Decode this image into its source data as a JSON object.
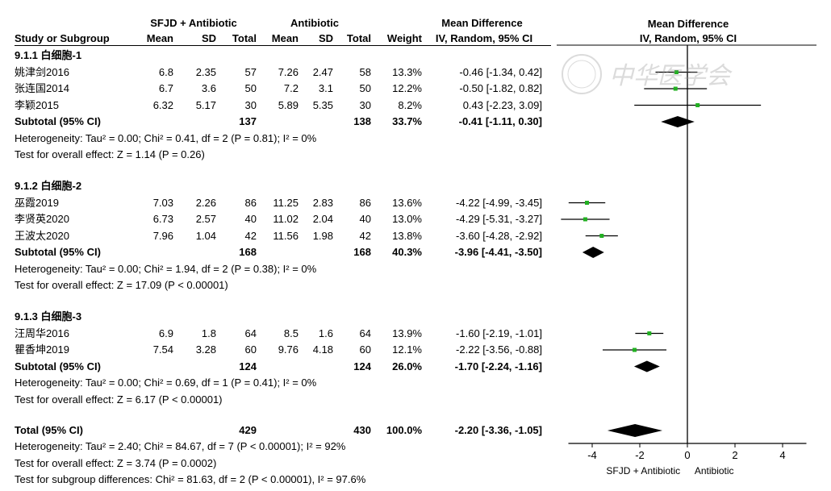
{
  "header": {
    "group1": "SFJD + Antibiotic",
    "group2": "Antibiotic",
    "md_title": "Mean Difference",
    "md_sub": "IV, Random, 95% CI",
    "plot_title": "Mean Difference",
    "plot_sub": "IV, Random, 95% CI",
    "cols": {
      "study": "Study or Subgroup",
      "mean1": "Mean",
      "sd1": "SD",
      "total1": "Total",
      "mean2": "Mean",
      "sd2": "SD",
      "total2": "Total",
      "weight": "Weight"
    }
  },
  "subgroups": [
    {
      "title": "9.1.1 白细胞-1",
      "studies": [
        {
          "name": "姚津剑2016",
          "mean1": "6.8",
          "sd1": "2.35",
          "total1": "57",
          "mean2": "7.26",
          "sd2": "2.47",
          "total2": "58",
          "weight": "13.3%",
          "ci": "-0.46 [-1.34, 0.42]",
          "md": -0.46,
          "lo": -1.34,
          "hi": 0.42
        },
        {
          "name": "张连国2014",
          "mean1": "6.7",
          "sd1": "3.6",
          "total1": "50",
          "mean2": "7.2",
          "sd2": "3.1",
          "total2": "50",
          "weight": "12.2%",
          "ci": "-0.50 [-1.82, 0.82]",
          "md": -0.5,
          "lo": -1.82,
          "hi": 0.82
        },
        {
          "name": "李颖2015",
          "mean1": "6.32",
          "sd1": "5.17",
          "total1": "30",
          "mean2": "5.89",
          "sd2": "5.35",
          "total2": "30",
          "weight": "8.2%",
          "ci": "0.43 [-2.23, 3.09]",
          "md": 0.43,
          "lo": -2.23,
          "hi": 3.09
        }
      ],
      "subtotal": {
        "label": "Subtotal (95% CI)",
        "total1": "137",
        "total2": "138",
        "weight": "33.7%",
        "ci": "-0.41 [-1.11, 0.30]",
        "md": -0.41,
        "lo": -1.11,
        "hi": 0.3
      },
      "heterogeneity": "Heterogeneity: Tau² = 0.00; Chi² = 0.41, df = 2 (P = 0.81); I² = 0%",
      "overall": "Test for overall effect: Z = 1.14 (P = 0.26)"
    },
    {
      "title": "9.1.2 白细胞-2",
      "studies": [
        {
          "name": "巫霞2019",
          "mean1": "7.03",
          "sd1": "2.26",
          "total1": "86",
          "mean2": "11.25",
          "sd2": "2.83",
          "total2": "86",
          "weight": "13.6%",
          "ci": "-4.22 [-4.99, -3.45]",
          "md": -4.22,
          "lo": -4.99,
          "hi": -3.45
        },
        {
          "name": "李贤英2020",
          "mean1": "6.73",
          "sd1": "2.57",
          "total1": "40",
          "mean2": "11.02",
          "sd2": "2.04",
          "total2": "40",
          "weight": "13.0%",
          "ci": "-4.29 [-5.31, -3.27]",
          "md": -4.29,
          "lo": -5.31,
          "hi": -3.27
        },
        {
          "name": "王波太2020",
          "mean1": "7.96",
          "sd1": "1.04",
          "total1": "42",
          "mean2": "11.56",
          "sd2": "1.98",
          "total2": "42",
          "weight": "13.8%",
          "ci": "-3.60 [-4.28, -2.92]",
          "md": -3.6,
          "lo": -4.28,
          "hi": -2.92
        }
      ],
      "subtotal": {
        "label": "Subtotal (95% CI)",
        "total1": "168",
        "total2": "168",
        "weight": "40.3%",
        "ci": "-3.96 [-4.41, -3.50]",
        "md": -3.96,
        "lo": -4.41,
        "hi": -3.5
      },
      "heterogeneity": "Heterogeneity: Tau² = 0.00; Chi² = 1.94, df = 2 (P = 0.38); I² = 0%",
      "overall": "Test for overall effect: Z = 17.09 (P < 0.00001)"
    },
    {
      "title": "9.1.3 白细胞-3",
      "studies": [
        {
          "name": "汪周华2016",
          "mean1": "6.9",
          "sd1": "1.8",
          "total1": "64",
          "mean2": "8.5",
          "sd2": "1.6",
          "total2": "64",
          "weight": "13.9%",
          "ci": "-1.60 [-2.19, -1.01]",
          "md": -1.6,
          "lo": -2.19,
          "hi": -1.01
        },
        {
          "name": "瞿香坤2019",
          "mean1": "7.54",
          "sd1": "3.28",
          "total1": "60",
          "mean2": "9.76",
          "sd2": "4.18",
          "total2": "60",
          "weight": "12.1%",
          "ci": "-2.22 [-3.56, -0.88]",
          "md": -2.22,
          "lo": -3.56,
          "hi": -0.88
        }
      ],
      "subtotal": {
        "label": "Subtotal (95% CI)",
        "total1": "124",
        "total2": "124",
        "weight": "26.0%",
        "ci": "-1.70 [-2.24, -1.16]",
        "md": -1.7,
        "lo": -2.24,
        "hi": -1.16
      },
      "heterogeneity": "Heterogeneity: Tau² = 0.00; Chi² = 0.69, df = 1 (P = 0.41); I² = 0%",
      "overall": "Test for overall effect: Z = 6.17 (P < 0.00001)"
    }
  ],
  "total": {
    "label": "Total (95% CI)",
    "total1": "429",
    "total2": "430",
    "weight": "100.0%",
    "ci": "-2.20 [-3.36, -1.05]",
    "md": -2.2,
    "lo": -3.36,
    "hi": -1.05,
    "heterogeneity": "Heterogeneity: Tau² = 2.40; Chi² = 84.67, df = 7 (P < 0.00001); I² = 92%",
    "overall": "Test for overall effect: Z = 3.74 (P = 0.0002)",
    "subgroup_diff": "Test for subgroup differences: Chi² = 81.63, df = 2 (P < 0.00001), I² = 97.6%"
  },
  "axis": {
    "ticks": [
      "-4",
      "-2",
      "0",
      "2",
      "4"
    ],
    "tick_values": [
      -4,
      -2,
      0,
      2,
      4
    ],
    "range": [
      -5,
      5
    ],
    "favours_left": "SFJD + Antibiotic",
    "favours_right": "Antibiotic"
  },
  "colors": {
    "study_marker": "#22b022",
    "diamond": "#000000"
  },
  "watermark_text": "中华医学会",
  "chart_data": {
    "type": "forest",
    "title": "Mean Difference",
    "xlabel": "IV, Random, 95% CI",
    "xlim": [
      -5,
      5
    ],
    "series": [
      {
        "name": "9.1.1 白细胞-1",
        "studies": [
          "姚津剑2016",
          "张连国2014",
          "李颖2015"
        ],
        "md": [
          -0.46,
          -0.5,
          0.43
        ],
        "lo": [
          -1.34,
          -1.82,
          -2.23
        ],
        "hi": [
          0.42,
          0.82,
          3.09
        ],
        "subtotal": [
          -0.41,
          -1.11,
          0.3
        ]
      },
      {
        "name": "9.1.2 白细胞-2",
        "studies": [
          "巫霞2019",
          "李贤英2020",
          "王波太2020"
        ],
        "md": [
          -4.22,
          -4.29,
          -3.6
        ],
        "lo": [
          -4.99,
          -5.31,
          -4.28
        ],
        "hi": [
          -3.45,
          -3.27,
          -2.92
        ],
        "subtotal": [
          -3.96,
          -4.41,
          -3.5
        ]
      },
      {
        "name": "9.1.3 白细胞-3",
        "studies": [
          "汪周华2016",
          "瞿香坤2019"
        ],
        "md": [
          -1.6,
          -2.22
        ],
        "lo": [
          -2.19,
          -3.56
        ],
        "hi": [
          -1.01,
          -0.88
        ],
        "subtotal": [
          -1.7,
          -2.24,
          -1.16
        ]
      }
    ],
    "total": [
      -2.2,
      -3.36,
      -1.05
    ]
  }
}
